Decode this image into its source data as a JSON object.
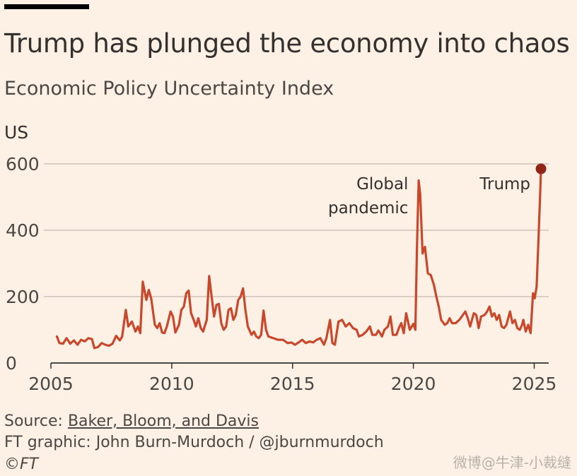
{
  "title": "Trump has plunged the economy into chaos",
  "subtitle": "Economic Policy Uncertainty Index",
  "region_label": "US",
  "footer": {
    "source_prefix": "Source: ",
    "source_link": "Baker, Bloom, and Davis",
    "credit": "FT graphic: John Burn-Murdoch / @jburnmurdoch",
    "copyright": "©FT"
  },
  "watermark": "微博@牛津-小裁缝",
  "colors": {
    "line": "#c9472b",
    "dot": "#8f2617",
    "grid": "#cbc2b9",
    "background": "#fdf1e6"
  },
  "chart_data": {
    "type": "line",
    "title": "Trump has plunged the economy into chaos",
    "subtitle": "Economic Policy Uncertainty Index",
    "ylabel": "US",
    "xlabel": "",
    "xlim": [
      2005,
      2025.6
    ],
    "ylim": [
      0,
      600
    ],
    "xticks": [
      2005,
      2010,
      2015,
      2020,
      2025
    ],
    "xtick_labels": [
      "2005",
      "2010",
      "2015",
      "2020",
      "2025"
    ],
    "yticks": [
      0,
      200,
      400,
      600
    ],
    "ytick_labels": [
      "0",
      "200",
      "400",
      "600"
    ],
    "grid": "horizontal",
    "annotations": [
      {
        "lines": [
          "Global",
          "pandemic"
        ],
        "x": 2020.2,
        "y": 550
      },
      {
        "lines": [
          "Trump"
        ],
        "x": 2025.25,
        "y": 585
      }
    ],
    "series": [
      {
        "name": "US Economic Policy Uncertainty Index",
        "points": [
          [
            2005.25,
            80
          ],
          [
            2005.35,
            60
          ],
          [
            2005.5,
            58
          ],
          [
            2005.65,
            75
          ],
          [
            2005.8,
            58
          ],
          [
            2005.95,
            68
          ],
          [
            2006.1,
            55
          ],
          [
            2006.25,
            70
          ],
          [
            2006.4,
            65
          ],
          [
            2006.55,
            75
          ],
          [
            2006.7,
            72
          ],
          [
            2006.8,
            45
          ],
          [
            2006.95,
            48
          ],
          [
            2007.1,
            60
          ],
          [
            2007.25,
            55
          ],
          [
            2007.4,
            52
          ],
          [
            2007.55,
            58
          ],
          [
            2007.7,
            82
          ],
          [
            2007.85,
            68
          ],
          [
            2007.95,
            80
          ],
          [
            2008.1,
            160
          ],
          [
            2008.2,
            110
          ],
          [
            2008.35,
            125
          ],
          [
            2008.5,
            95
          ],
          [
            2008.6,
            110
          ],
          [
            2008.7,
            90
          ],
          [
            2008.8,
            245
          ],
          [
            2008.95,
            190
          ],
          [
            2009.05,
            220
          ],
          [
            2009.15,
            195
          ],
          [
            2009.3,
            115
          ],
          [
            2009.4,
            105
          ],
          [
            2009.5,
            120
          ],
          [
            2009.6,
            92
          ],
          [
            2009.7,
            90
          ],
          [
            2009.8,
            110
          ],
          [
            2009.95,
            155
          ],
          [
            2010.05,
            140
          ],
          [
            2010.15,
            92
          ],
          [
            2010.3,
            115
          ],
          [
            2010.4,
            160
          ],
          [
            2010.5,
            170
          ],
          [
            2010.6,
            210
          ],
          [
            2010.7,
            218
          ],
          [
            2010.8,
            150
          ],
          [
            2010.9,
            132
          ],
          [
            2011.0,
            110
          ],
          [
            2011.1,
            135
          ],
          [
            2011.2,
            105
          ],
          [
            2011.3,
            95
          ],
          [
            2011.45,
            130
          ],
          [
            2011.55,
            262
          ],
          [
            2011.65,
            200
          ],
          [
            2011.75,
            140
          ],
          [
            2011.85,
            175
          ],
          [
            2011.95,
            178
          ],
          [
            2012.05,
            120
          ],
          [
            2012.15,
            100
          ],
          [
            2012.25,
            110
          ],
          [
            2012.35,
            160
          ],
          [
            2012.45,
            165
          ],
          [
            2012.55,
            130
          ],
          [
            2012.65,
            145
          ],
          [
            2012.75,
            190
          ],
          [
            2012.85,
            200
          ],
          [
            2012.95,
            225
          ],
          [
            2013.05,
            160
          ],
          [
            2013.15,
            110
          ],
          [
            2013.3,
            85
          ],
          [
            2013.4,
            95
          ],
          [
            2013.5,
            80
          ],
          [
            2013.6,
            75
          ],
          [
            2013.7,
            85
          ],
          [
            2013.8,
            158
          ],
          [
            2013.9,
            100
          ],
          [
            2014.0,
            80
          ],
          [
            2014.2,
            75
          ],
          [
            2014.4,
            70
          ],
          [
            2014.6,
            70
          ],
          [
            2014.8,
            60
          ],
          [
            2014.95,
            62
          ],
          [
            2015.1,
            55
          ],
          [
            2015.25,
            62
          ],
          [
            2015.4,
            70
          ],
          [
            2015.55,
            60
          ],
          [
            2015.7,
            65
          ],
          [
            2015.85,
            62
          ],
          [
            2016.0,
            70
          ],
          [
            2016.15,
            75
          ],
          [
            2016.3,
            55
          ],
          [
            2016.4,
            75
          ],
          [
            2016.55,
            130
          ],
          [
            2016.65,
            60
          ],
          [
            2016.75,
            55
          ],
          [
            2016.9,
            125
          ],
          [
            2017.05,
            130
          ],
          [
            2017.2,
            110
          ],
          [
            2017.35,
            120
          ],
          [
            2017.5,
            105
          ],
          [
            2017.65,
            100
          ],
          [
            2017.75,
            80
          ],
          [
            2017.9,
            85
          ],
          [
            2018.05,
            95
          ],
          [
            2018.2,
            110
          ],
          [
            2018.3,
            85
          ],
          [
            2018.45,
            85
          ],
          [
            2018.55,
            98
          ],
          [
            2018.7,
            80
          ],
          [
            2018.8,
            100
          ],
          [
            2018.95,
            110
          ],
          [
            2019.05,
            140
          ],
          [
            2019.15,
            85
          ],
          [
            2019.3,
            85
          ],
          [
            2019.4,
            105
          ],
          [
            2019.5,
            120
          ],
          [
            2019.6,
            90
          ],
          [
            2019.7,
            150
          ],
          [
            2019.85,
            100
          ],
          [
            2020.0,
            118
          ],
          [
            2020.08,
            100
          ],
          [
            2020.15,
            350
          ],
          [
            2020.22,
            550
          ],
          [
            2020.28,
            510
          ],
          [
            2020.38,
            330
          ],
          [
            2020.48,
            350
          ],
          [
            2020.6,
            270
          ],
          [
            2020.72,
            265
          ],
          [
            2020.85,
            235
          ],
          [
            2020.95,
            200
          ],
          [
            2021.05,
            170
          ],
          [
            2021.15,
            130
          ],
          [
            2021.3,
            115
          ],
          [
            2021.4,
            120
          ],
          [
            2021.5,
            135
          ],
          [
            2021.6,
            120
          ],
          [
            2021.75,
            120
          ],
          [
            2021.9,
            130
          ],
          [
            2022.05,
            145
          ],
          [
            2022.15,
            155
          ],
          [
            2022.25,
            135
          ],
          [
            2022.35,
            110
          ],
          [
            2022.5,
            150
          ],
          [
            2022.6,
            145
          ],
          [
            2022.7,
            105
          ],
          [
            2022.8,
            140
          ],
          [
            2022.95,
            145
          ],
          [
            2023.05,
            155
          ],
          [
            2023.15,
            170
          ],
          [
            2023.25,
            140
          ],
          [
            2023.35,
            150
          ],
          [
            2023.45,
            130
          ],
          [
            2023.55,
            145
          ],
          [
            2023.65,
            110
          ],
          [
            2023.75,
            105
          ],
          [
            2023.85,
            115
          ],
          [
            2024.0,
            155
          ],
          [
            2024.1,
            120
          ],
          [
            2024.2,
            130
          ],
          [
            2024.3,
            105
          ],
          [
            2024.4,
            100
          ],
          [
            2024.5,
            115
          ],
          [
            2024.55,
            130
          ],
          [
            2024.65,
            95
          ],
          [
            2024.75,
            115
          ],
          [
            2024.85,
            90
          ],
          [
            2024.95,
            210
          ],
          [
            2025.02,
            195
          ],
          [
            2025.1,
            230
          ],
          [
            2025.17,
            360
          ],
          [
            2025.23,
            480
          ],
          [
            2025.28,
            585
          ]
        ],
        "endpoint": [
          2025.28,
          585
        ]
      }
    ]
  }
}
